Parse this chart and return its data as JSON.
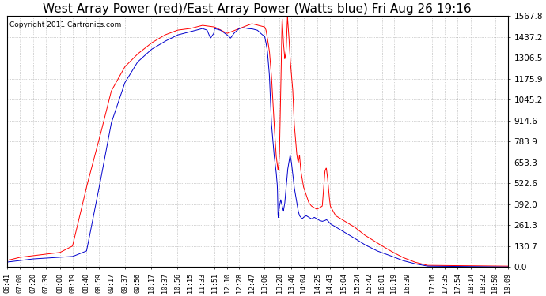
{
  "title": "West Array Power (red)/East Array Power (Watts blue) Fri Aug 26 19:16",
  "copyright": "Copyright 2011 Cartronics.com",
  "ylabel_right": [
    "1567.8",
    "1437.2",
    "1306.5",
    "1175.9",
    "1045.2",
    "914.6",
    "783.9",
    "653.3",
    "522.6",
    "392.0",
    "261.3",
    "130.7",
    "0.0"
  ],
  "ymax": 1567.8,
  "ymin": 0.0,
  "background_color": "#ffffff",
  "grid_color": "#aaaaaa",
  "red_color": "#ff0000",
  "blue_color": "#0000cc",
  "title_fontsize": 11,
  "copyright_fontsize": 6.5,
  "xtick_fontsize": 6,
  "ytick_fontsize": 7.5,
  "x_labels": [
    "06:41",
    "07:00",
    "07:20",
    "07:39",
    "08:00",
    "08:19",
    "08:40",
    "08:59",
    "09:17",
    "09:37",
    "09:56",
    "10:17",
    "10:37",
    "10:56",
    "11:15",
    "11:33",
    "11:51",
    "12:10",
    "12:28",
    "12:47",
    "13:06",
    "13:28",
    "13:46",
    "14:04",
    "14:25",
    "14:43",
    "15:04",
    "15:24",
    "15:42",
    "16:01",
    "16:19",
    "16:39",
    "17:16",
    "17:35",
    "17:54",
    "18:14",
    "18:32",
    "18:50",
    "19:09"
  ]
}
